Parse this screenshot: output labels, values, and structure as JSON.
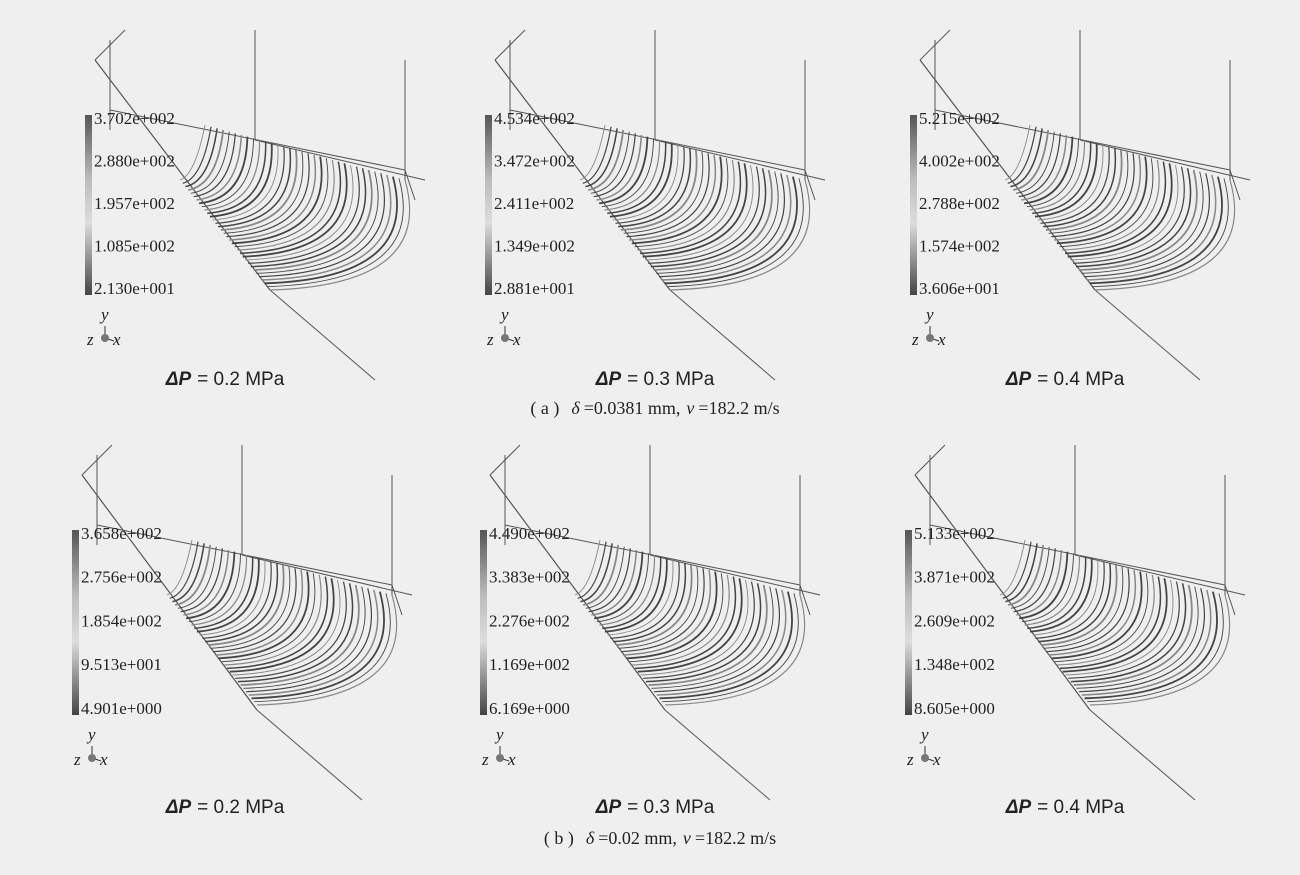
{
  "rows": [
    {
      "panels": [
        {
          "colorbar": [
            "3.702e+002",
            "2.880e+002",
            "1.957e+002",
            "1.085e+002",
            "2.130e+001"
          ],
          "axes": {
            "y": "y",
            "z": "z",
            "x": "x"
          },
          "label": {
            "symbol": "ΔP",
            "value": "= 0.2 MPa"
          }
        },
        {
          "colorbar": [
            "4.534e+002",
            "3.472e+002",
            "2.411e+002",
            "1.349e+002",
            "2.881e+001"
          ],
          "axes": {
            "y": "y",
            "z": "z",
            "x": "x"
          },
          "label": {
            "symbol": "ΔP",
            "value": "= 0.3 MPa"
          }
        },
        {
          "colorbar": [
            "5.215e+002",
            "4.002e+002",
            "2.788e+002",
            "1.574e+002",
            "3.606e+001"
          ],
          "axes": {
            "y": "y",
            "z": "z",
            "x": "x"
          },
          "label": {
            "symbol": "ΔP",
            "value": "= 0.4 MPa"
          }
        }
      ],
      "caption": {
        "tag": "( a )",
        "delta": "δ",
        "delta_value": "=0.0381 mm,",
        "v": "v",
        "v_value": "=182.2 m/s"
      }
    },
    {
      "panels": [
        {
          "colorbar": [
            "3.658e+002",
            "2.756e+002",
            "1.854e+002",
            "9.513e+001",
            "4.901e+000"
          ],
          "axes": {
            "y": "y",
            "z": "z",
            "x": "x"
          },
          "label": {
            "symbol": "ΔP",
            "value": "= 0.2 MPa"
          }
        },
        {
          "colorbar": [
            "4.490e+002",
            "3.383e+002",
            "2.276e+002",
            "1.169e+002",
            "6.169e+000"
          ],
          "axes": {
            "y": "y",
            "z": "z",
            "x": "x"
          },
          "label": {
            "symbol": "ΔP",
            "value": "= 0.3 MPa"
          }
        },
        {
          "colorbar": [
            "5.133e+002",
            "3.871e+002",
            "2.609e+002",
            "1.348e+002",
            "8.605e+000"
          ],
          "axes": {
            "y": "y",
            "z": "z",
            "x": "x"
          },
          "label": {
            "symbol": "ΔP",
            "value": "= 0.4 MPa"
          }
        }
      ],
      "caption": {
        "tag": "( b )",
        "delta": "δ",
        "delta_value": "=0.02 mm,",
        "v": "v",
        "v_value": "=182.2 m/s"
      }
    }
  ]
}
